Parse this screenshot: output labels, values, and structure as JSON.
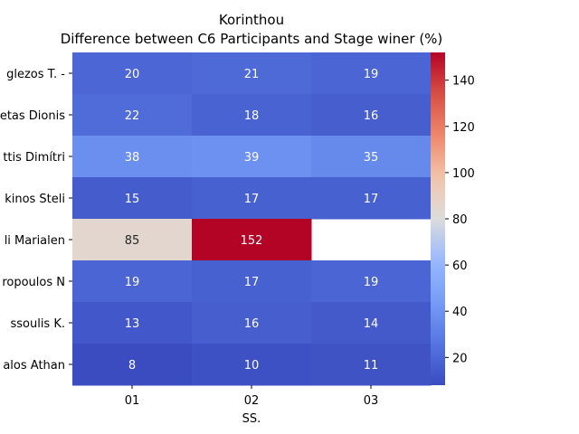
{
  "chart_data": {
    "type": "heatmap",
    "title": "Korinthou",
    "subtitle": "Difference between C6 Participants and Stage winer (%)",
    "xlabel": "SS.",
    "ylabel": "",
    "x": [
      "01",
      "02",
      "03"
    ],
    "y": [
      "glezos T.  -",
      "etas Dionis",
      "ttis Dimítri",
      "kinos Steli",
      "li Marialen",
      "ropoulos N",
      "ssoulis K. ",
      "alos Athan"
    ],
    "values": [
      [
        20,
        21,
        19
      ],
      [
        22,
        18,
        16
      ],
      [
        38,
        39,
        35
      ],
      [
        15,
        17,
        17
      ],
      [
        85,
        152,
        null
      ],
      [
        19,
        17,
        19
      ],
      [
        13,
        16,
        14
      ],
      [
        8,
        10,
        11
      ]
    ],
    "colorbar": {
      "min": 8,
      "max": 152,
      "ticks": [
        20,
        40,
        60,
        80,
        100,
        120,
        140
      ]
    },
    "colormap": "coolwarm"
  }
}
